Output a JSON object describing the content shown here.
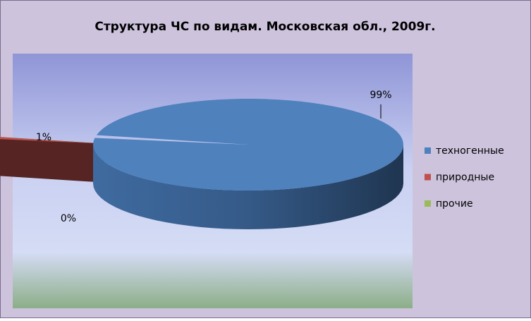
{
  "chart_data": {
    "type": "pie3d",
    "title": "Структура ЧС по видам. Московская обл., 2009г.",
    "categories": [
      "техногенные",
      "природные",
      "прочие"
    ],
    "values": [
      99,
      1,
      0
    ],
    "value_labels": [
      "99%",
      "1%",
      "0%"
    ],
    "colors": [
      "#4f81bd",
      "#c0504d",
      "#9bbb59"
    ],
    "legend": "right"
  }
}
